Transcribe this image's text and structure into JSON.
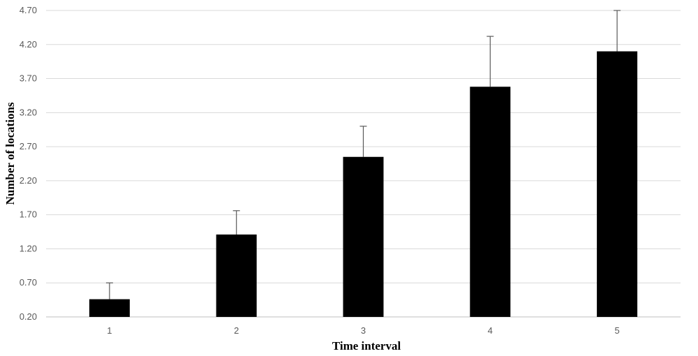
{
  "chart_data": {
    "type": "bar",
    "categories": [
      "1",
      "2",
      "3",
      "4",
      "5"
    ],
    "values": [
      0.46,
      1.41,
      2.55,
      3.58,
      4.1
    ],
    "error_upper": [
      0.7,
      1.76,
      3.0,
      4.32,
      4.7
    ],
    "title": "",
    "xlabel": "Time interval",
    "ylabel": "Number of locations",
    "ylim": [
      0.2,
      4.7
    ],
    "yticks": [
      "0.20",
      "0.70",
      "1.20",
      "1.70",
      "2.20",
      "2.70",
      "3.20",
      "3.70",
      "4.20",
      "4.70"
    ],
    "grid": true,
    "legend": "none",
    "colors": {
      "bar": "#000000",
      "grid": "#d9d9d9",
      "error_bar": "#595959",
      "tick_label": "#595959"
    }
  }
}
